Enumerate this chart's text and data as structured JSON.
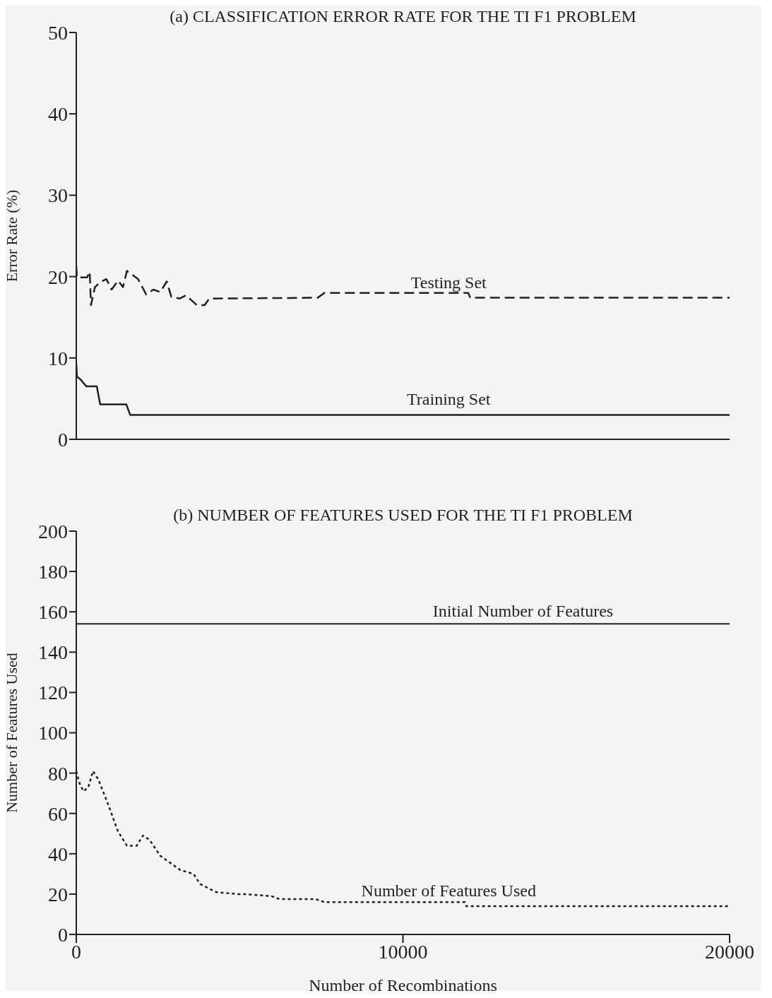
{
  "chart_data": [
    {
      "type": "line",
      "title": "(a) CLASSIFICATION ERROR RATE FOR THE TI F1 PROBLEM",
      "ylabel": "Error Rate (%)",
      "xlim": [
        0,
        20000
      ],
      "xticks": [
        0,
        10000,
        20000
      ],
      "ylim": [
        0,
        50
      ],
      "yticks": [
        0,
        10,
        20,
        30,
        40,
        50
      ],
      "tick_labels": "y",
      "marker": "none",
      "series": [
        {
          "name": "Testing Set",
          "color": "#231f1c",
          "line_style": "dashed",
          "x": [
            0,
            20,
            330,
            410,
            450,
            570,
            730,
            920,
            1080,
            1280,
            1430,
            1550,
            1890,
            2140,
            2360,
            2570,
            2770,
            2910,
            3170,
            3360,
            3580,
            3690,
            3930,
            4070,
            7390,
            7600,
            12000,
            12060,
            20000
          ],
          "values": [
            21.3,
            19.9,
            19.9,
            20.6,
            16.5,
            18.7,
            19.3,
            19.7,
            18.4,
            19.5,
            18.7,
            20.7,
            19.7,
            17.8,
            18.4,
            18.1,
            19.4,
            17.5,
            17.3,
            17.7,
            16.9,
            16.5,
            16.5,
            17.3,
            17.4,
            18.0,
            18.0,
            17.4,
            17.4
          ]
        },
        {
          "name": "Training Set",
          "color": "#231f1c",
          "line_style": "solid",
          "x": [
            0,
            20,
            120,
            310,
            630,
            730,
            1530,
            1650,
            20000
          ],
          "values": [
            9.3,
            7.7,
            7.4,
            6.5,
            6.5,
            4.3,
            4.3,
            3.0,
            3.0
          ]
        }
      ]
    },
    {
      "type": "line",
      "title": "(b) NUMBER OF FEATURES USED FOR THE TI F1 PROBLEM",
      "xlabel": "Number of Recombinations",
      "ylabel": "Number of Features Used",
      "xlim": [
        0,
        20000
      ],
      "xticks": [
        0,
        10000,
        20000
      ],
      "ylim": [
        0,
        200
      ],
      "yticks": [
        0,
        20,
        40,
        60,
        80,
        100,
        120,
        140,
        160,
        180,
        200
      ],
      "marker": "none",
      "ref_lines": [
        {
          "axis": "y",
          "value": 154,
          "label": "Initial Number of Features"
        }
      ],
      "series": [
        {
          "name": "Number of Features Used",
          "color": "#231f1c",
          "line_style": "dotted",
          "x": [
            0,
            100,
            220,
            370,
            510,
            670,
            940,
            1280,
            1550,
            1850,
            2040,
            2240,
            2570,
            3180,
            3590,
            3790,
            4280,
            4950,
            5150,
            5970,
            6230,
            7330,
            7600,
            11900,
            11940,
            20000
          ],
          "values": [
            81,
            75,
            71,
            73,
            81,
            77,
            66,
            51,
            44,
            44,
            49,
            47,
            39,
            32,
            30,
            25,
            21,
            20,
            20,
            19,
            17.5,
            17.5,
            16,
            16,
            14,
            14
          ]
        }
      ]
    }
  ]
}
